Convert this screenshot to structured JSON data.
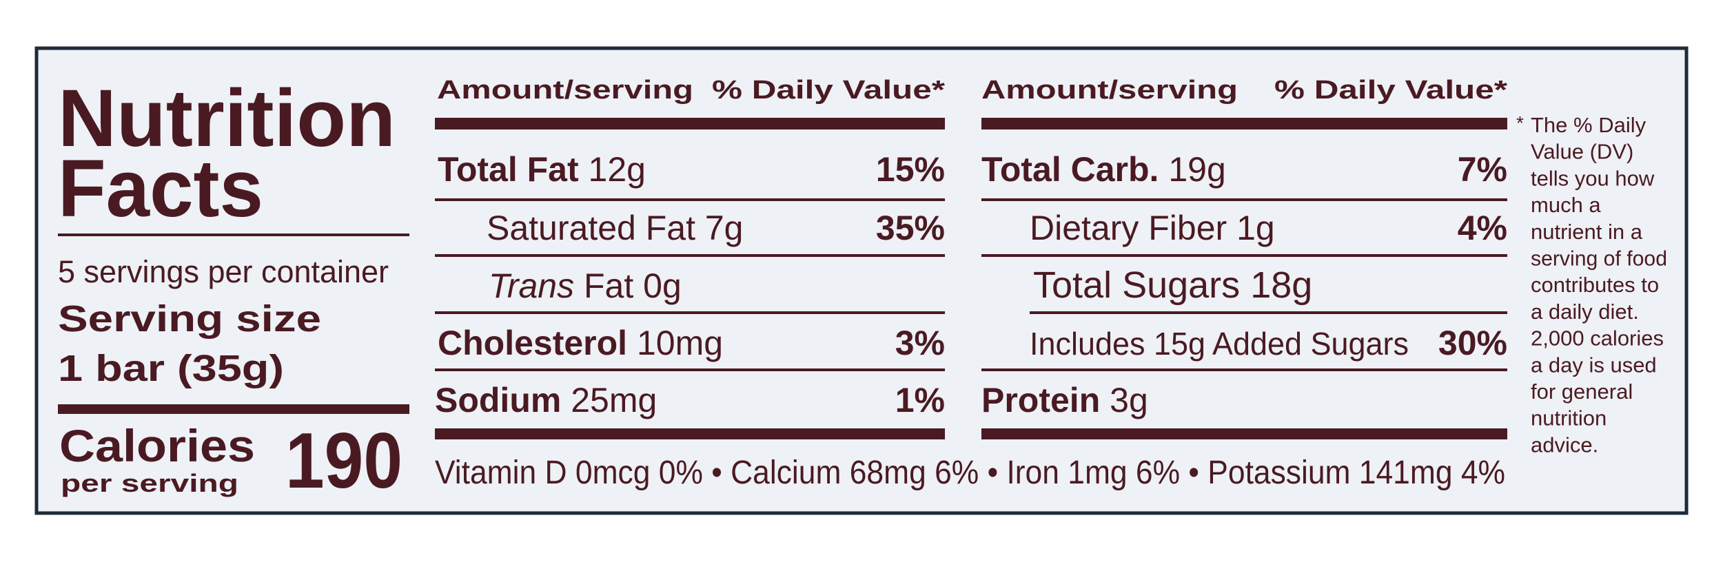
{
  "left": {
    "title_line1": "Nutrition",
    "title_line2": "Facts",
    "servings": "5 servings per container",
    "serving_size_label": "Serving size",
    "serving_size": "1 bar (35g)",
    "calories_label": "Calories",
    "calories_sub": "per serving",
    "calories": "190"
  },
  "middle": {
    "header": {
      "amount": "Amount/serving",
      "dv": "% Daily Value*"
    },
    "rows": [
      {
        "name": "Total Fat",
        "amount": "12g",
        "dv": "15%"
      },
      {
        "name": "Saturated Fat",
        "amount": "7g",
        "dv": "35%"
      },
      {
        "name_italic": "Trans",
        "name": "Fat",
        "amount": "0g"
      },
      {
        "name": "Cholesterol",
        "amount": "10mg",
        "dv": "3%"
      },
      {
        "name": "Sodium",
        "amount": "25mg",
        "dv": "1%"
      }
    ]
  },
  "right": {
    "header": {
      "amount": "Amount/serving",
      "dv": "% Daily Value*"
    },
    "rows": [
      {
        "name": "Total Carb.",
        "amount": "19g",
        "dv": "7%"
      },
      {
        "name": "Dietary Fiber",
        "amount": "1g",
        "dv": "4%"
      },
      {
        "name": "Total Sugars",
        "amount": "18g"
      },
      {
        "name": "Includes 15g Added Sugars",
        "dv": "30%"
      },
      {
        "name": "Protein",
        "amount": "3g"
      }
    ]
  },
  "vitamins": "Vitamin D 0mcg 0% • Calcium 68mg 6% • Iron 1mg 6% • Potassium 141mg 4%",
  "footnote": {
    "asterisk": "*",
    "lines": [
      "The % Daily",
      "Value (DV)",
      "tells you how",
      "much a",
      "nutrient in a",
      "serving of food",
      "contributes to",
      "a daily diet.",
      "2,000 calories",
      "a day is used",
      "for general",
      "nutrition",
      "advice."
    ]
  }
}
